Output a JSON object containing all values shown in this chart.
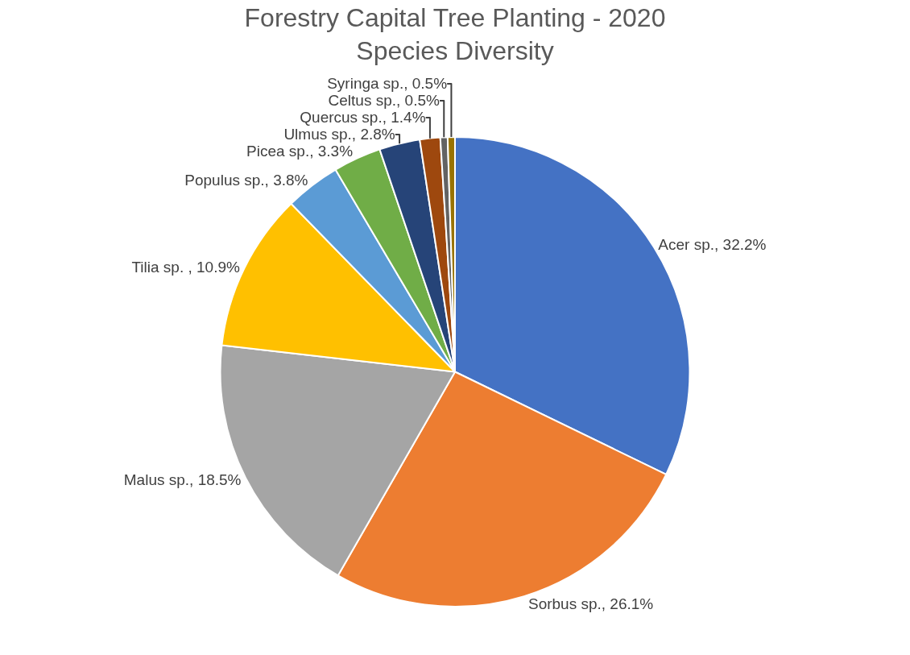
{
  "chart_data": {
    "type": "pie",
    "title": "Forestry Capital Tree Planting - 2020\nSpecies Diversity",
    "categories": [
      "Acer sp.",
      "Sorbus sp.",
      "Malus sp.",
      "Tilia sp. ",
      "Populus sp.",
      "Picea sp.",
      "Ulmus sp.",
      "Quercus sp.",
      "Celtus sp.",
      "Syringa sp."
    ],
    "values": [
      32.2,
      26.1,
      18.5,
      10.9,
      3.8,
      3.3,
      2.8,
      1.4,
      0.5,
      0.5
    ],
    "value_labels": [
      "32.2%",
      "26.1%",
      "18.5%",
      "10.9%",
      "3.8%",
      "3.3%",
      "2.8%",
      "1.4%",
      "0.5%",
      "0.5%"
    ],
    "colors": [
      "#4472c4",
      "#ed7d31",
      "#a5a5a5",
      "#ffc000",
      "#5b9bd5",
      "#70ad47",
      "#264478",
      "#9e480e",
      "#636363",
      "#997300"
    ],
    "legend": false
  }
}
